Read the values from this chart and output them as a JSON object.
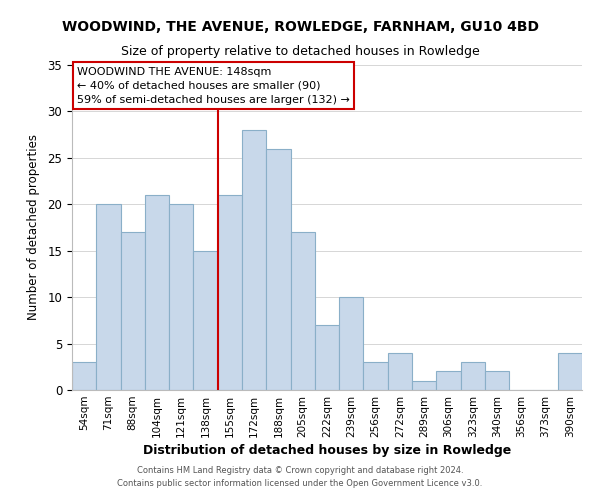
{
  "title": "WOODWIND, THE AVENUE, ROWLEDGE, FARNHAM, GU10 4BD",
  "subtitle": "Size of property relative to detached houses in Rowledge",
  "xlabel": "Distribution of detached houses by size in Rowledge",
  "ylabel": "Number of detached properties",
  "bar_color": "#c8d8ea",
  "bar_edge_color": "#8aafc8",
  "categories": [
    "54sqm",
    "71sqm",
    "88sqm",
    "104sqm",
    "121sqm",
    "138sqm",
    "155sqm",
    "172sqm",
    "188sqm",
    "205sqm",
    "222sqm",
    "239sqm",
    "256sqm",
    "272sqm",
    "289sqm",
    "306sqm",
    "323sqm",
    "340sqm",
    "356sqm",
    "373sqm",
    "390sqm"
  ],
  "values": [
    3,
    20,
    17,
    21,
    20,
    15,
    21,
    28,
    26,
    17,
    7,
    10,
    3,
    4,
    1,
    2,
    3,
    2,
    0,
    0,
    4
  ],
  "ylim": [
    0,
    35
  ],
  "yticks": [
    0,
    5,
    10,
    15,
    20,
    25,
    30,
    35
  ],
  "vline_color": "#cc0000",
  "vline_x_index": 5.5,
  "annotation_title": "WOODWIND THE AVENUE: 148sqm",
  "annotation_line1": "← 40% of detached houses are smaller (90)",
  "annotation_line2": "59% of semi-detached houses are larger (132) →",
  "annotation_box_color": "#ffffff",
  "annotation_box_edge": "#cc0000",
  "footer1": "Contains HM Land Registry data © Crown copyright and database right 2024.",
  "footer2": "Contains public sector information licensed under the Open Government Licence v3.0."
}
